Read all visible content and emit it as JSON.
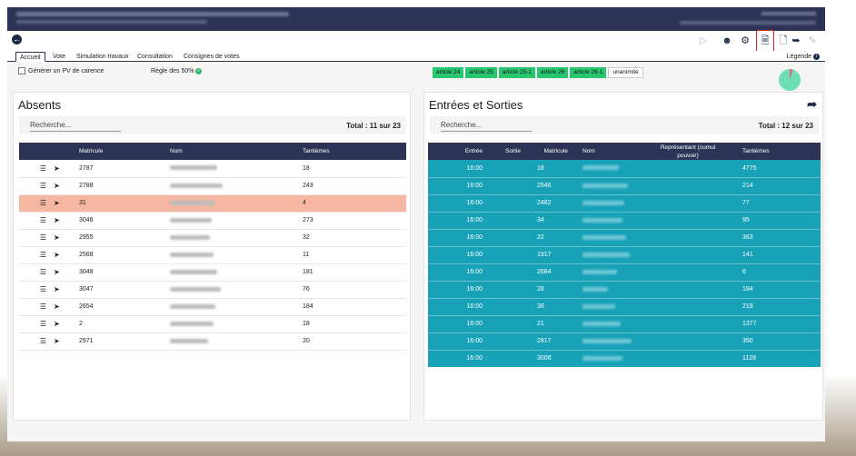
{
  "tabs": [
    "Accueil",
    "Vote",
    "Simulation travaux",
    "Consultation",
    "Consignes de votes"
  ],
  "legend_label": "Légende",
  "options": {
    "pv_carence_label": "Générer un PV de carence",
    "rule_label": "Règle des 50%"
  },
  "articles": [
    "article 24",
    "article 25",
    "article 25-1",
    "article 26",
    "article 26-1",
    "unanimité"
  ],
  "absents": {
    "title": "Absents",
    "search_placeholder": "Recherche...",
    "total": "Total : 11 sur 23",
    "headers": [
      "Matricule",
      "Nom",
      "Tantièmes"
    ],
    "rows": [
      {
        "matricule": "2787",
        "tantiemes": "18"
      },
      {
        "matricule": "2788",
        "tantiemes": "243"
      },
      {
        "matricule": "31",
        "tantiemes": "4"
      },
      {
        "matricule": "3046",
        "tantiemes": "273"
      },
      {
        "matricule": "2955",
        "tantiemes": "32"
      },
      {
        "matricule": "2568",
        "tantiemes": "11"
      },
      {
        "matricule": "3048",
        "tantiemes": "181"
      },
      {
        "matricule": "3047",
        "tantiemes": "76"
      },
      {
        "matricule": "2654",
        "tantiemes": "184"
      },
      {
        "matricule": "2",
        "tantiemes": "18"
      },
      {
        "matricule": "2971",
        "tantiemes": "20"
      }
    ]
  },
  "entrees": {
    "title": "Entrées et Sorties",
    "search_placeholder": "Recherche...",
    "total": "Total : 12 sur 23",
    "headers": [
      "Entrée",
      "Sortie",
      "Matricule",
      "Nom",
      "Représentant (cumul pouvoir)",
      "Tantièmes"
    ],
    "rows": [
      {
        "entree": "16:00",
        "matricule": "18",
        "tantiemes": "4775"
      },
      {
        "entree": "16:00",
        "matricule": "2546",
        "tantiemes": "214"
      },
      {
        "entree": "16:00",
        "matricule": "2482",
        "tantiemes": "77"
      },
      {
        "entree": "16:00",
        "matricule": "34",
        "tantiemes": "95"
      },
      {
        "entree": "16:00",
        "matricule": "22",
        "tantiemes": "363"
      },
      {
        "entree": "16:00",
        "matricule": "1917",
        "tantiemes": "141"
      },
      {
        "entree": "16:00",
        "matricule": "2684",
        "tantiemes": "6"
      },
      {
        "entree": "16:00",
        "matricule": "28",
        "tantiemes": "194"
      },
      {
        "entree": "16:00",
        "matricule": "38",
        "tantiemes": "219"
      },
      {
        "entree": "16:00",
        "matricule": "21",
        "tantiemes": "1377"
      },
      {
        "entree": "16:00",
        "matricule": "2817",
        "tantiemes": "350"
      },
      {
        "entree": "16:00",
        "matricule": "3006",
        "tantiemes": "1128"
      }
    ]
  },
  "colors": {
    "header_bg": "#2d3355",
    "highlight_row": "#f6b7a2",
    "teal_row": "#17a2b8",
    "article_green": "#28c76f"
  }
}
